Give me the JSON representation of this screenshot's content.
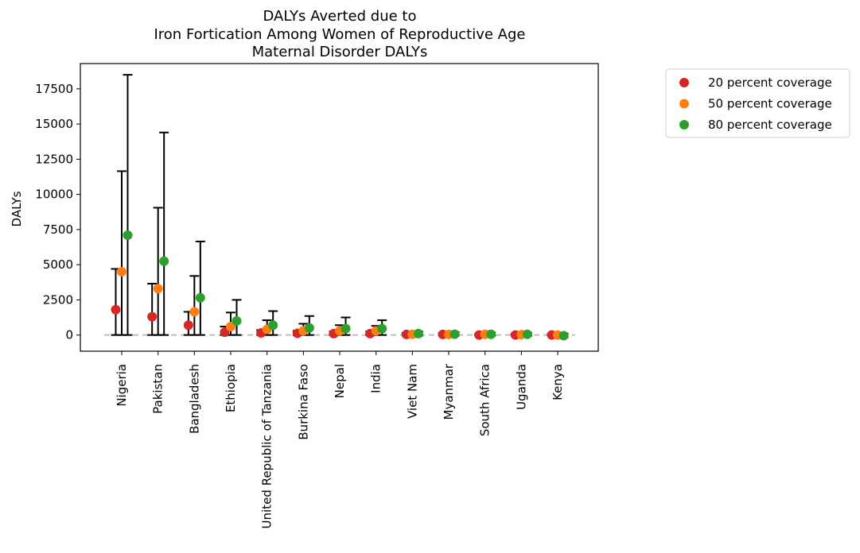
{
  "chart_data": {
    "type": "scatter",
    "title_lines": [
      "DALYs Averted due to",
      "Iron Fortication Among Women of Reproductive Age",
      "Maternal Disorder DALYs"
    ],
    "xlabel": "",
    "ylabel": "DALYs",
    "ylim": [
      -1150,
      19300
    ],
    "yticks": [
      0,
      2500,
      5000,
      7500,
      10000,
      12500,
      15000,
      17500
    ],
    "ytick_labels": [
      "0",
      "2500",
      "5000",
      "7500",
      "10000",
      "12500",
      "15000",
      "17500"
    ],
    "categories": [
      "Nigeria",
      "Pakistan",
      "Bangladesh",
      "Ethiopia",
      "United Republic of Tanzania",
      "Burkina Faso",
      "Nepal",
      "India",
      "Viet Nam",
      "Myanmar",
      "South Africa",
      "Uganda",
      "Kenya"
    ],
    "reference_line": 0,
    "legend_position": "outside right, top",
    "series": [
      {
        "name": "20 percent coverage",
        "color": "#d62728",
        "values": [
          1800,
          1300,
          700,
          200,
          150,
          120,
          100,
          100,
          40,
          40,
          0,
          0,
          0
        ],
        "lower": [
          0,
          0,
          0,
          0,
          0,
          0,
          0,
          0,
          0,
          0,
          0,
          0,
          0
        ],
        "upper": [
          4700,
          3650,
          1650,
          600,
          350,
          300,
          250,
          250,
          150,
          130,
          80,
          80,
          50
        ]
      },
      {
        "name": "50 percent coverage",
        "color": "#ff7f0e",
        "values": [
          4500,
          3300,
          1650,
          600,
          400,
          300,
          300,
          300,
          50,
          40,
          50,
          30,
          0
        ],
        "lower": [
          0,
          0,
          0,
          0,
          0,
          0,
          0,
          0,
          -50,
          -50,
          -50,
          -50,
          -80
        ],
        "upper": [
          11650,
          9050,
          4200,
          1600,
          1050,
          800,
          700,
          650,
          180,
          150,
          150,
          120,
          80
        ]
      },
      {
        "name": "80 percent coverage",
        "color": "#2ca02c",
        "values": [
          7100,
          5250,
          2650,
          1000,
          700,
          500,
          450,
          450,
          100,
          60,
          50,
          50,
          -50
        ],
        "lower": [
          0,
          0,
          0,
          0,
          0,
          0,
          0,
          0,
          -50,
          -50,
          -50,
          -50,
          -150
        ],
        "upper": [
          18500,
          14400,
          6650,
          2500,
          1700,
          1350,
          1250,
          1050,
          250,
          200,
          180,
          150,
          100
        ]
      }
    ]
  }
}
